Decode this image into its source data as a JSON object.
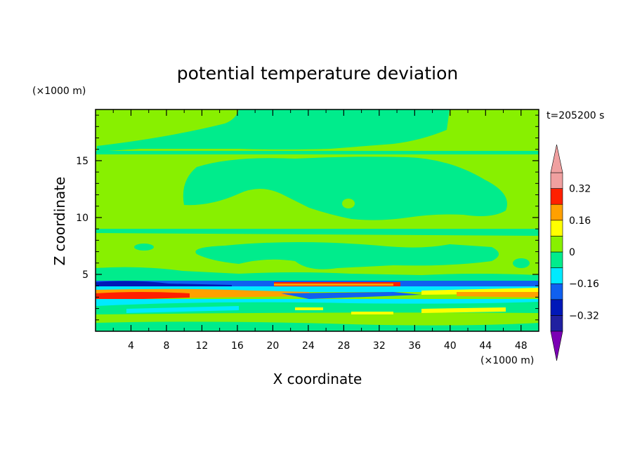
{
  "chart_data": {
    "type": "heatmap",
    "title": "potential temperature deviation",
    "xlabel": "X coordinate",
    "ylabel": "Z coordinate",
    "x_unit": "(×1000 m)",
    "y_unit": "(×1000 m)",
    "time_label": "t=205200 s",
    "xlim": [
      0,
      50
    ],
    "ylim": [
      0,
      19.5
    ],
    "x_ticks": [
      4,
      8,
      12,
      16,
      20,
      24,
      28,
      32,
      36,
      40,
      44,
      48
    ],
    "y_ticks": [
      5,
      10,
      15
    ],
    "colorbar": {
      "levels": [
        -0.4,
        -0.32,
        -0.24,
        -0.16,
        -0.08,
        0,
        0.08,
        0.16,
        0.24,
        0.32,
        0.4
      ],
      "colors": [
        "#7b00b4",
        "#2020a0",
        "#0018b8",
        "#1060f0",
        "#00eaff",
        "#00ec8c",
        "#88f000",
        "#ffff00",
        "#ffa000",
        "#ff2000",
        "#f0a0a0"
      ],
      "tick_labels": [
        "0.32",
        "0.16",
        "0",
        "−0.16",
        "−0.32"
      ],
      "tick_values": [
        0.32,
        0.16,
        0,
        -0.16,
        -0.32
      ]
    }
  }
}
